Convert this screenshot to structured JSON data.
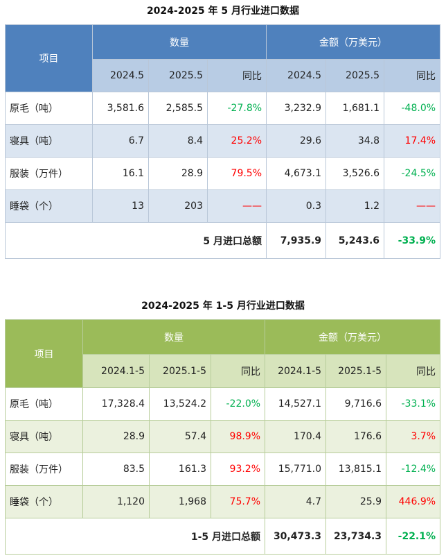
{
  "table1": {
    "title": "2024-2025 年 5 月行业进口数据",
    "item_header": "项目",
    "qty_header": "数量",
    "amt_header": "金额（万美元）",
    "sub_headers": [
      "2024.5",
      "2025.5",
      "同比",
      "2024.5",
      "2025.5",
      "同比"
    ],
    "rows": [
      {
        "label": "原毛（吨）",
        "q1": "3,581.6",
        "q2": "2,585.5",
        "qyoy": "-27.8%",
        "qyoy_color": "green",
        "a1": "3,232.9",
        "a2": "1,681.1",
        "ayoy": "-48.0%",
        "ayoy_color": "green"
      },
      {
        "label": "寝具（吨）",
        "q1": "6.7",
        "q2": "8.4",
        "qyoy": "25.2%",
        "qyoy_color": "red",
        "a1": "29.6",
        "a2": "34.8",
        "ayoy": "17.4%",
        "ayoy_color": "red"
      },
      {
        "label": "服装（万件）",
        "q1": "16.1",
        "q2": "28.9",
        "qyoy": "79.5%",
        "qyoy_color": "red",
        "a1": "4,673.1",
        "a2": "3,526.6",
        "ayoy": "-24.5%",
        "ayoy_color": "green"
      },
      {
        "label": "睡袋（个）",
        "q1": "13",
        "q2": "203",
        "qyoy": "——",
        "qyoy_color": "red",
        "a1": "0.3",
        "a2": "1.2",
        "ayoy": "——",
        "ayoy_color": "red"
      }
    ],
    "total": {
      "label": "5 月进口总额",
      "a1": "7,935.9",
      "a2": "5,243.6",
      "ayoy": "-33.9%",
      "ayoy_color": "green"
    }
  },
  "table2": {
    "title": "2024-2025 年 1-5 月行业进口数据",
    "item_header": "项目",
    "qty_header": "数量",
    "amt_header": "金额（万美元）",
    "sub_headers": [
      "2024.1-5",
      "2025.1-5",
      "同比",
      "2024.1-5",
      "2025.1-5",
      "同比"
    ],
    "rows": [
      {
        "label": "原毛（吨）",
        "q1": "17,328.4",
        "q2": "13,524.2",
        "qyoy": "-22.0%",
        "qyoy_color": "green",
        "a1": "14,527.1",
        "a2": "9,716.6",
        "ayoy": "-33.1%",
        "ayoy_color": "green"
      },
      {
        "label": "寝具（吨）",
        "q1": "28.9",
        "q2": "57.4",
        "qyoy": "98.9%",
        "qyoy_color": "red",
        "a1": "170.4",
        "a2": "176.6",
        "ayoy": "3.7%",
        "ayoy_color": "red"
      },
      {
        "label": "服装（万件）",
        "q1": "83.5",
        "q2": "161.3",
        "qyoy": "93.2%",
        "qyoy_color": "red",
        "a1": "15,771.0",
        "a2": "13,815.1",
        "ayoy": "-12.4%",
        "ayoy_color": "green"
      },
      {
        "label": "睡袋（个）",
        "q1": "1,120",
        "q2": "1,968",
        "qyoy": "75.7%",
        "qyoy_color": "red",
        "a1": "4.7",
        "a2": "25.9",
        "ayoy": "446.9%",
        "ayoy_color": "red"
      }
    ],
    "total": {
      "label": "1-5 月进口总额",
      "a1": "30,473.3",
      "a2": "23,734.3",
      "ayoy": "-22.1%",
      "ayoy_color": "green"
    }
  },
  "colors": {
    "blue_header": "#4f81bd",
    "blue_subheader": "#b8cce4",
    "blue_alt_row": "#dbe5f1",
    "green_header": "#9bbb59",
    "green_subheader": "#d7e4bc",
    "green_alt_row": "#ebf1de",
    "positive_change": "#ff0000",
    "negative_change": "#00b050"
  }
}
